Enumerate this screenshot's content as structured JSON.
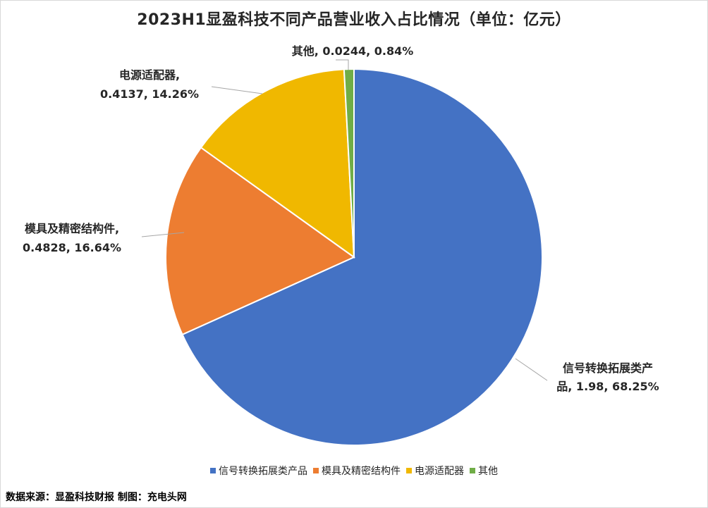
{
  "chart_data": {
    "type": "pie",
    "title": "2023H1显盈科技不同产品营业收入占比情况（单位：亿元）",
    "slices": [
      {
        "name": "信号转换拓展类产品",
        "value": 1.98,
        "value_label": "1.98",
        "percent_label": "68.25%",
        "color": "#4472C4",
        "label_line1": "信号转换拓展类产",
        "label_line2": "品, 1.98, 68.25%"
      },
      {
        "name": "模具及精密结构件",
        "value": 0.4828,
        "value_label": "0.4828",
        "percent_label": "16.64%",
        "color": "#ED7D31",
        "label_line1": "模具及精密结构件,",
        "label_line2": "0.4828, 16.64%"
      },
      {
        "name": "电源适配器",
        "value": 0.4137,
        "value_label": "0.4137",
        "percent_label": "14.26%",
        "color": "#F0B800",
        "label_line1": "电源适配器,",
        "label_line2": "0.4137, 14.26%"
      },
      {
        "name": "其他",
        "value": 0.0244,
        "value_label": "0.0244",
        "percent_label": "0.84%",
        "color": "#70AD47",
        "label_line1": "其他, 0.0244, 0.84%",
        "label_line2": ""
      }
    ],
    "legend_position": "bottom"
  },
  "legend": [
    "信号转换拓展类产品",
    "模具及精密结构件",
    "电源适配器",
    "其他"
  ],
  "footer": {
    "source": "数据来源：显盈科技财报  制图：充电头网"
  }
}
